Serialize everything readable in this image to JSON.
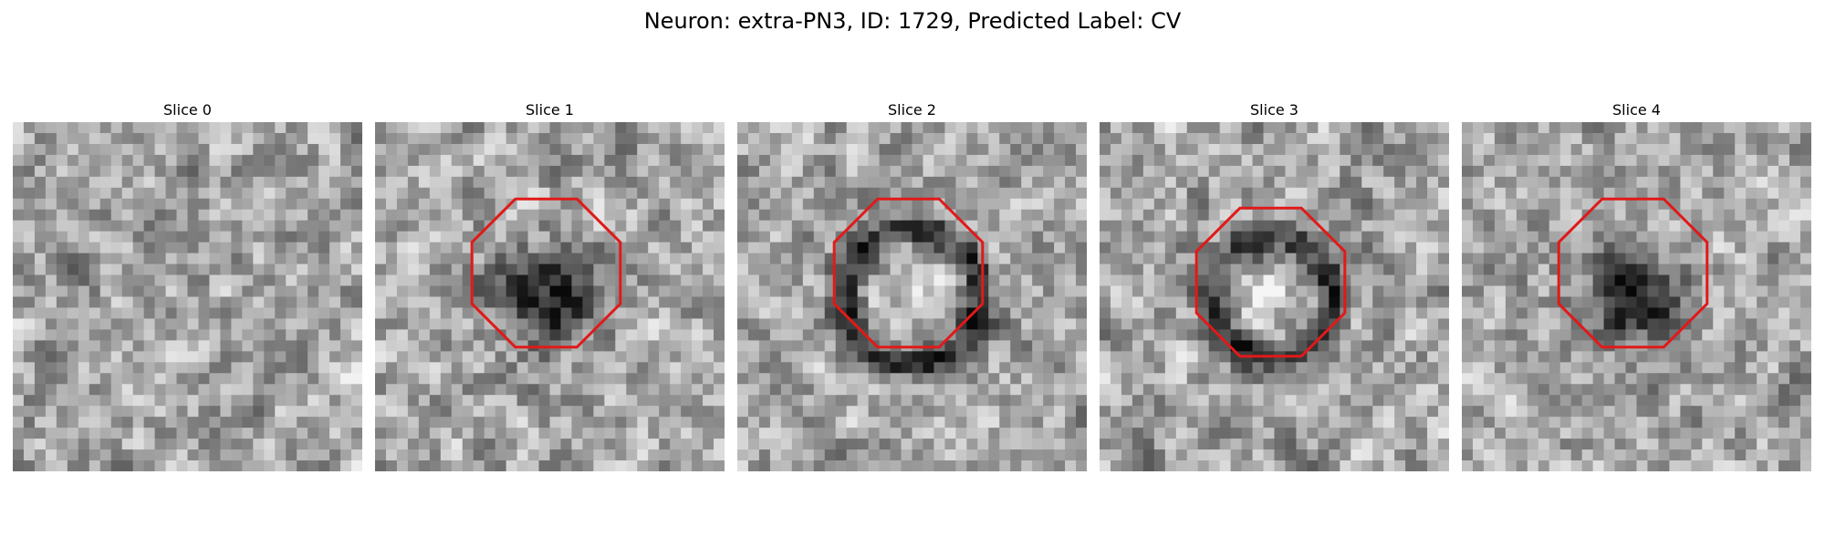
{
  "figure": {
    "title": "Neuron: extra-PN3, ID: 1729, Predicted Label: CV"
  },
  "colors": {
    "background": "#ffffff",
    "outline": "#e11919",
    "dark_pixel": "#080808",
    "light_pixel": "#f3f3f3"
  },
  "slices": [
    {
      "label": "Slice 0",
      "has_outline": false,
      "feature": "texture"
    },
    {
      "label": "Slice 1",
      "has_outline": true,
      "feature": "dark-blob"
    },
    {
      "label": "Slice 2",
      "has_outline": true,
      "feature": "dark-ring"
    },
    {
      "label": "Slice 3",
      "has_outline": true,
      "feature": "dark-ring"
    },
    {
      "label": "Slice 4",
      "has_outline": true,
      "feature": "dark-blob"
    }
  ]
}
